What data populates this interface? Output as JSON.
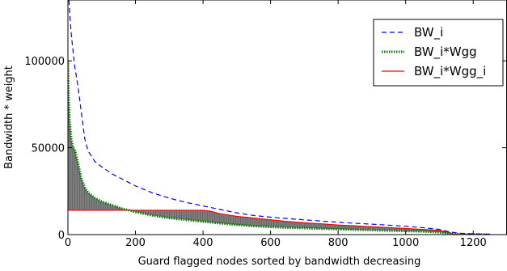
{
  "chart_data": {
    "type": "line",
    "title": "",
    "xlabel": "Guard flagged nodes sorted by bandwidth decreasing",
    "ylabel": "Bandwidth * weight",
    "xlim": [
      0,
      1300
    ],
    "ylim": [
      0,
      135000
    ],
    "xticks": [
      0,
      200,
      400,
      600,
      800,
      1000,
      1200
    ],
    "xtick_labels": [
      "0",
      "200",
      "400",
      "600",
      "800",
      "1000",
      "1200"
    ],
    "yticks": [
      0,
      50000,
      100000
    ],
    "ytick_labels": [
      "0",
      "50000",
      "100000"
    ],
    "grid": false,
    "legend_position": "top-right",
    "shaded_between": [
      "BW_i*Wgg",
      "BW_i*Wgg_i"
    ],
    "series": [
      {
        "name": "BW_i",
        "style": "dashed",
        "color": "#0000ff",
        "points": [
          [
            3,
            135000
          ],
          [
            5,
            128000
          ],
          [
            10,
            115000
          ],
          [
            20,
            97000
          ],
          [
            30,
            85000
          ],
          [
            40,
            70000
          ],
          [
            50,
            55000
          ],
          [
            60,
            48000
          ],
          [
            80,
            42000
          ],
          [
            100,
            39000
          ],
          [
            130,
            35000
          ],
          [
            160,
            32000
          ],
          [
            200,
            28000
          ],
          [
            250,
            24000
          ],
          [
            300,
            21000
          ],
          [
            350,
            18500
          ],
          [
            400,
            16500
          ],
          [
            450,
            14500
          ],
          [
            500,
            12500
          ],
          [
            550,
            11000
          ],
          [
            600,
            10000
          ],
          [
            650,
            9200
          ],
          [
            700,
            8500
          ],
          [
            750,
            7800
          ],
          [
            800,
            7100
          ],
          [
            850,
            6500
          ],
          [
            900,
            6000
          ],
          [
            950,
            5400
          ],
          [
            1000,
            4800
          ],
          [
            1050,
            4000
          ],
          [
            1100,
            3000
          ],
          [
            1130,
            1500
          ],
          [
            1160,
            800
          ],
          [
            1200,
            400
          ],
          [
            1250,
            200
          ]
        ]
      },
      {
        "name": "BW_i*Wgg",
        "style": "dotted",
        "color": "#008000",
        "points": [
          [
            0,
            100000
          ],
          [
            2,
            80000
          ],
          [
            5,
            65000
          ],
          [
            10,
            55000
          ],
          [
            15,
            50000
          ],
          [
            20,
            49000
          ],
          [
            30,
            41000
          ],
          [
            40,
            32000
          ],
          [
            50,
            27000
          ],
          [
            60,
            24000
          ],
          [
            80,
            21000
          ],
          [
            100,
            19000
          ],
          [
            130,
            17000
          ],
          [
            160,
            15000
          ],
          [
            200,
            13000
          ],
          [
            250,
            11000
          ],
          [
            300,
            9500
          ],
          [
            350,
            8500
          ],
          [
            400,
            7500
          ],
          [
            450,
            6500
          ],
          [
            500,
            5600
          ],
          [
            550,
            4900
          ],
          [
            600,
            4400
          ],
          [
            650,
            4000
          ],
          [
            700,
            3700
          ],
          [
            750,
            3400
          ],
          [
            800,
            3100
          ],
          [
            850,
            2800
          ],
          [
            900,
            2600
          ],
          [
            950,
            2300
          ],
          [
            1000,
            2100
          ],
          [
            1050,
            1800
          ],
          [
            1100,
            1300
          ],
          [
            1130,
            500
          ],
          [
            1160,
            200
          ],
          [
            1200,
            100
          ],
          [
            1250,
            50
          ]
        ]
      },
      {
        "name": "BW_i*Wgg_i",
        "style": "solid",
        "color": "#ff0000",
        "points": [
          [
            0,
            14000
          ],
          [
            200,
            14000
          ],
          [
            300,
            14000
          ],
          [
            400,
            14000
          ],
          [
            420,
            13500
          ],
          [
            450,
            12000
          ],
          [
            500,
            10500
          ],
          [
            550,
            9500
          ],
          [
            600,
            8500
          ],
          [
            650,
            7500
          ],
          [
            700,
            6800
          ],
          [
            750,
            6200
          ],
          [
            800,
            5500
          ],
          [
            850,
            5000
          ],
          [
            900,
            4500
          ],
          [
            950,
            4000
          ],
          [
            1000,
            3500
          ],
          [
            1050,
            3000
          ],
          [
            1100,
            2400
          ],
          [
            1125,
            1600
          ],
          [
            1140,
            300
          ],
          [
            1160,
            100
          ],
          [
            1200,
            50
          ],
          [
            1250,
            20
          ]
        ]
      }
    ]
  }
}
